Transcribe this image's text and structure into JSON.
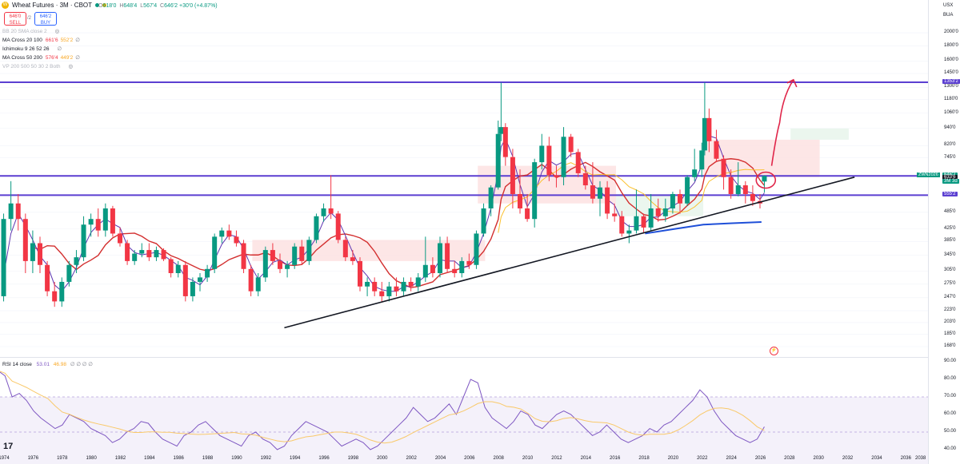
{
  "header": {
    "title": "Wheat Futures · 3M · CBOT",
    "sym_icon": "wheat-symbol-icon",
    "ohlc": {
      "o_label": "O",
      "o": "618'0",
      "h_label": "H",
      "h": "648'4",
      "l_label": "L",
      "l": "567'4",
      "c_label": "C",
      "c": "646'2",
      "chg": "+30'0 (+4.87%)"
    },
    "sell_price": "646'0",
    "sell_label": "SELL",
    "spread": "/2",
    "buy_price": "646'2",
    "buy_label": "BUY"
  },
  "indicators": [
    {
      "name": "BB 20 SMA close 2",
      "v1": "",
      "v2": "",
      "faded": true
    },
    {
      "name": "MA Cross 20 100",
      "v1": "661'6",
      "v2": "552'2"
    },
    {
      "name": "Ichimoku 9 26 52 26",
      "v1": "",
      "v2": ""
    },
    {
      "name": "MA Cross 50 200",
      "v1": "576'4",
      "v2": "449'2"
    },
    {
      "name": "VP 200 500 50 30 2 Both",
      "v1": "",
      "v2": "",
      "faded": true
    }
  ],
  "rsi_legend": {
    "name": "RSI 14 close",
    "v1": "53.01",
    "v2": "46.98",
    "rest": "∅ ∅ ∅ ∅"
  },
  "price_axis": {
    "currency": "USX",
    "unit": "BUA",
    "ticks": [
      {
        "v": 2000,
        "label": "2000'0"
      },
      {
        "v": 1800,
        "label": "1800'0"
      },
      {
        "v": 1600,
        "label": "1600'0"
      },
      {
        "v": 1450,
        "label": "1450'0"
      },
      {
        "v": 1300,
        "label": "1300'0"
      },
      {
        "v": 1180,
        "label": "1180'0"
      },
      {
        "v": 1060,
        "label": "1060'0"
      },
      {
        "v": 940,
        "label": "940'0"
      },
      {
        "v": 820,
        "label": "820'0"
      },
      {
        "v": 745,
        "label": "745'0"
      },
      {
        "v": 485,
        "label": "485'0"
      },
      {
        "v": 425,
        "label": "425'0"
      },
      {
        "v": 385,
        "label": "385'0"
      },
      {
        "v": 345,
        "label": "345'0"
      },
      {
        "v": 305,
        "label": "305'0"
      },
      {
        "v": 275,
        "label": "275'0"
      },
      {
        "v": 247,
        "label": "247'0"
      },
      {
        "v": 223,
        "label": "223'0"
      },
      {
        "v": 203,
        "label": "203'0"
      },
      {
        "v": 185,
        "label": "185'0"
      },
      {
        "v": 168,
        "label": "168'0"
      }
    ],
    "tags": [
      {
        "v": 1353.2,
        "label": "1353'2",
        "color": "#5b3fd1"
      },
      {
        "v": 646.2,
        "label": "646'2",
        "color": "#089981"
      },
      {
        "v": 633.6,
        "label": "633'6",
        "color": "#131722"
      },
      {
        "v": 555.2,
        "label": "555'2",
        "color": "#5b3fd1"
      }
    ],
    "contract_tag": "ZWN2026",
    "countdown": "3M 3d"
  },
  "rsi_axis": {
    "ticks": [
      "90.00",
      "80.00",
      "70.00",
      "60.00",
      "50.00",
      "40.00"
    ]
  },
  "time_axis": {
    "ticks": [
      "1974",
      "1976",
      "1978",
      "1980",
      "1982",
      "1984",
      "1986",
      "1988",
      "1990",
      "1992",
      "1994",
      "1996",
      "1998",
      "2000",
      "2002",
      "2004",
      "2006",
      "2008",
      "2010",
      "2012",
      "2014",
      "2016",
      "2018",
      "2020",
      "2022",
      "2024",
      "2026",
      "2028",
      "2030",
      "2032",
      "2034",
      "2036",
      "2038"
    ]
  },
  "chart_data": {
    "type": "candlestick",
    "symbol": "Wheat Futures",
    "interval": "3M",
    "exchange": "CBOT",
    "x_range": [
      "1972",
      "2038"
    ],
    "y_scale": "log",
    "candles": [
      {
        "t": 1972.9,
        "o": 160,
        "h": 180,
        "l": 150,
        "c": 175
      },
      {
        "t": 1973.4,
        "o": 175,
        "h": 260,
        "l": 170,
        "c": 250
      },
      {
        "t": 1973.9,
        "o": 250,
        "h": 480,
        "l": 240,
        "c": 460
      },
      {
        "t": 1974.4,
        "o": 460,
        "h": 620,
        "l": 420,
        "c": 520
      },
      {
        "t": 1974.9,
        "o": 520,
        "h": 560,
        "l": 420,
        "c": 460
      },
      {
        "t": 1975.4,
        "o": 460,
        "h": 480,
        "l": 300,
        "c": 330
      },
      {
        "t": 1975.9,
        "o": 330,
        "h": 420,
        "l": 300,
        "c": 380
      },
      {
        "t": 1976.4,
        "o": 380,
        "h": 400,
        "l": 300,
        "c": 320
      },
      {
        "t": 1976.9,
        "o": 320,
        "h": 330,
        "l": 250,
        "c": 260
      },
      {
        "t": 1977.4,
        "o": 260,
        "h": 280,
        "l": 230,
        "c": 240
      },
      {
        "t": 1977.9,
        "o": 240,
        "h": 290,
        "l": 230,
        "c": 280
      },
      {
        "t": 1978.4,
        "o": 280,
        "h": 330,
        "l": 270,
        "c": 320
      },
      {
        "t": 1978.9,
        "o": 320,
        "h": 360,
        "l": 300,
        "c": 340
      },
      {
        "t": 1979.4,
        "o": 340,
        "h": 470,
        "l": 330,
        "c": 440
      },
      {
        "t": 1979.9,
        "o": 440,
        "h": 480,
        "l": 400,
        "c": 460
      },
      {
        "t": 1980.4,
        "o": 460,
        "h": 500,
        "l": 400,
        "c": 420
      },
      {
        "t": 1980.9,
        "o": 420,
        "h": 520,
        "l": 400,
        "c": 500
      },
      {
        "t": 1981.4,
        "o": 500,
        "h": 510,
        "l": 400,
        "c": 410
      },
      {
        "t": 1981.9,
        "o": 410,
        "h": 430,
        "l": 370,
        "c": 380
      },
      {
        "t": 1982.4,
        "o": 380,
        "h": 390,
        "l": 320,
        "c": 330
      },
      {
        "t": 1982.9,
        "o": 330,
        "h": 360,
        "l": 320,
        "c": 350
      },
      {
        "t": 1983.4,
        "o": 350,
        "h": 380,
        "l": 340,
        "c": 360
      },
      {
        "t": 1983.9,
        "o": 360,
        "h": 380,
        "l": 330,
        "c": 340
      },
      {
        "t": 1984.4,
        "o": 340,
        "h": 370,
        "l": 330,
        "c": 360
      },
      {
        "t": 1984.9,
        "o": 360,
        "h": 365,
        "l": 330,
        "c": 335
      },
      {
        "t": 1985.4,
        "o": 335,
        "h": 340,
        "l": 290,
        "c": 300
      },
      {
        "t": 1985.9,
        "o": 300,
        "h": 330,
        "l": 290,
        "c": 320
      },
      {
        "t": 1986.4,
        "o": 320,
        "h": 330,
        "l": 240,
        "c": 250
      },
      {
        "t": 1986.9,
        "o": 250,
        "h": 290,
        "l": 240,
        "c": 280
      },
      {
        "t": 1987.4,
        "o": 280,
        "h": 300,
        "l": 260,
        "c": 290
      },
      {
        "t": 1987.9,
        "o": 290,
        "h": 320,
        "l": 280,
        "c": 310
      },
      {
        "t": 1988.4,
        "o": 310,
        "h": 410,
        "l": 300,
        "c": 400
      },
      {
        "t": 1988.9,
        "o": 400,
        "h": 430,
        "l": 380,
        "c": 420
      },
      {
        "t": 1989.4,
        "o": 420,
        "h": 440,
        "l": 390,
        "c": 400
      },
      {
        "t": 1989.9,
        "o": 400,
        "h": 420,
        "l": 370,
        "c": 380
      },
      {
        "t": 1990.4,
        "o": 380,
        "h": 390,
        "l": 300,
        "c": 310
      },
      {
        "t": 1990.9,
        "o": 310,
        "h": 320,
        "l": 250,
        "c": 260
      },
      {
        "t": 1991.4,
        "o": 260,
        "h": 300,
        "l": 250,
        "c": 290
      },
      {
        "t": 1991.9,
        "o": 290,
        "h": 370,
        "l": 280,
        "c": 360
      },
      {
        "t": 1992.4,
        "o": 360,
        "h": 380,
        "l": 320,
        "c": 330
      },
      {
        "t": 1992.9,
        "o": 330,
        "h": 350,
        "l": 300,
        "c": 310
      },
      {
        "t": 1993.4,
        "o": 310,
        "h": 330,
        "l": 290,
        "c": 320
      },
      {
        "t": 1993.9,
        "o": 320,
        "h": 380,
        "l": 310,
        "c": 370
      },
      {
        "t": 1994.4,
        "o": 370,
        "h": 390,
        "l": 320,
        "c": 330
      },
      {
        "t": 1994.9,
        "o": 330,
        "h": 400,
        "l": 320,
        "c": 390
      },
      {
        "t": 1995.4,
        "o": 390,
        "h": 480,
        "l": 380,
        "c": 470
      },
      {
        "t": 1995.9,
        "o": 470,
        "h": 520,
        "l": 450,
        "c": 500
      },
      {
        "t": 1996.4,
        "o": 500,
        "h": 650,
        "l": 460,
        "c": 480
      },
      {
        "t": 1996.9,
        "o": 480,
        "h": 490,
        "l": 380,
        "c": 390
      },
      {
        "t": 1997.4,
        "o": 390,
        "h": 400,
        "l": 330,
        "c": 340
      },
      {
        "t": 1997.9,
        "o": 340,
        "h": 360,
        "l": 320,
        "c": 330
      },
      {
        "t": 1998.4,
        "o": 330,
        "h": 340,
        "l": 260,
        "c": 270
      },
      {
        "t": 1998.9,
        "o": 270,
        "h": 290,
        "l": 250,
        "c": 280
      },
      {
        "t": 1999.4,
        "o": 280,
        "h": 290,
        "l": 250,
        "c": 260
      },
      {
        "t": 1999.9,
        "o": 260,
        "h": 280,
        "l": 240,
        "c": 250
      },
      {
        "t": 2000.4,
        "o": 250,
        "h": 280,
        "l": 240,
        "c": 270
      },
      {
        "t": 2000.9,
        "o": 270,
        "h": 290,
        "l": 250,
        "c": 260
      },
      {
        "t": 2001.4,
        "o": 260,
        "h": 290,
        "l": 250,
        "c": 280
      },
      {
        "t": 2001.9,
        "o": 280,
        "h": 290,
        "l": 260,
        "c": 270
      },
      {
        "t": 2002.4,
        "o": 270,
        "h": 300,
        "l": 260,
        "c": 290
      },
      {
        "t": 2002.9,
        "o": 290,
        "h": 400,
        "l": 280,
        "c": 320
      },
      {
        "t": 2003.4,
        "o": 320,
        "h": 340,
        "l": 290,
        "c": 300
      },
      {
        "t": 2003.9,
        "o": 300,
        "h": 400,
        "l": 290,
        "c": 380
      },
      {
        "t": 2004.4,
        "o": 380,
        "h": 400,
        "l": 300,
        "c": 310
      },
      {
        "t": 2004.9,
        "o": 310,
        "h": 330,
        "l": 290,
        "c": 300
      },
      {
        "t": 2005.4,
        "o": 300,
        "h": 340,
        "l": 290,
        "c": 330
      },
      {
        "t": 2005.9,
        "o": 330,
        "h": 350,
        "l": 310,
        "c": 320
      },
      {
        "t": 2006.4,
        "o": 320,
        "h": 420,
        "l": 310,
        "c": 410
      },
      {
        "t": 2006.9,
        "o": 410,
        "h": 520,
        "l": 400,
        "c": 500
      },
      {
        "t": 2007.4,
        "o": 500,
        "h": 600,
        "l": 470,
        "c": 590
      },
      {
        "t": 2007.9,
        "o": 590,
        "h": 1000,
        "l": 580,
        "c": 900
      },
      {
        "t": 2008.1,
        "o": 900,
        "h": 1350,
        "l": 850,
        "c": 950
      },
      {
        "t": 2008.4,
        "o": 950,
        "h": 980,
        "l": 700,
        "c": 750
      },
      {
        "t": 2008.9,
        "o": 750,
        "h": 800,
        "l": 500,
        "c": 560
      },
      {
        "t": 2009.4,
        "o": 560,
        "h": 680,
        "l": 480,
        "c": 500
      },
      {
        "t": 2009.9,
        "o": 500,
        "h": 560,
        "l": 450,
        "c": 460
      },
      {
        "t": 2010.4,
        "o": 460,
        "h": 740,
        "l": 430,
        "c": 720
      },
      {
        "t": 2010.9,
        "o": 720,
        "h": 900,
        "l": 680,
        "c": 820
      },
      {
        "t": 2011.4,
        "o": 820,
        "h": 880,
        "l": 620,
        "c": 650
      },
      {
        "t": 2011.9,
        "o": 650,
        "h": 700,
        "l": 590,
        "c": 640
      },
      {
        "t": 2012.4,
        "o": 640,
        "h": 950,
        "l": 600,
        "c": 880
      },
      {
        "t": 2012.9,
        "o": 880,
        "h": 900,
        "l": 750,
        "c": 780
      },
      {
        "t": 2013.4,
        "o": 780,
        "h": 800,
        "l": 640,
        "c": 660
      },
      {
        "t": 2013.9,
        "o": 660,
        "h": 700,
        "l": 580,
        "c": 600
      },
      {
        "t": 2014.4,
        "o": 600,
        "h": 720,
        "l": 520,
        "c": 540
      },
      {
        "t": 2014.9,
        "o": 540,
        "h": 620,
        "l": 470,
        "c": 590
      },
      {
        "t": 2015.4,
        "o": 590,
        "h": 620,
        "l": 460,
        "c": 480
      },
      {
        "t": 2015.9,
        "o": 480,
        "h": 520,
        "l": 450,
        "c": 470
      },
      {
        "t": 2016.4,
        "o": 470,
        "h": 490,
        "l": 400,
        "c": 410
      },
      {
        "t": 2016.9,
        "o": 410,
        "h": 440,
        "l": 380,
        "c": 420
      },
      {
        "t": 2017.4,
        "o": 420,
        "h": 580,
        "l": 410,
        "c": 470
      },
      {
        "t": 2017.9,
        "o": 470,
        "h": 480,
        "l": 410,
        "c": 430
      },
      {
        "t": 2018.4,
        "o": 430,
        "h": 560,
        "l": 420,
        "c": 500
      },
      {
        "t": 2018.9,
        "o": 500,
        "h": 540,
        "l": 450,
        "c": 470
      },
      {
        "t": 2019.4,
        "o": 470,
        "h": 540,
        "l": 450,
        "c": 500
      },
      {
        "t": 2019.9,
        "o": 500,
        "h": 570,
        "l": 480,
        "c": 560
      },
      {
        "t": 2020.4,
        "o": 560,
        "h": 580,
        "l": 480,
        "c": 520
      },
      {
        "t": 2020.9,
        "o": 520,
        "h": 650,
        "l": 510,
        "c": 640
      },
      {
        "t": 2021.4,
        "o": 640,
        "h": 800,
        "l": 620,
        "c": 680
      },
      {
        "t": 2021.9,
        "o": 680,
        "h": 840,
        "l": 640,
        "c": 790
      },
      {
        "t": 2022.1,
        "o": 790,
        "h": 1350,
        "l": 760,
        "c": 1020
      },
      {
        "t": 2022.4,
        "o": 1020,
        "h": 1100,
        "l": 780,
        "c": 850
      },
      {
        "t": 2022.9,
        "o": 850,
        "h": 930,
        "l": 720,
        "c": 740
      },
      {
        "t": 2023.4,
        "o": 740,
        "h": 760,
        "l": 580,
        "c": 640
      },
      {
        "t": 2023.9,
        "o": 640,
        "h": 680,
        "l": 540,
        "c": 560
      },
      {
        "t": 2024.4,
        "o": 560,
        "h": 720,
        "l": 550,
        "c": 600
      },
      {
        "t": 2024.9,
        "o": 600,
        "h": 620,
        "l": 520,
        "c": 560
      },
      {
        "t": 2025.4,
        "o": 560,
        "h": 600,
        "l": 510,
        "c": 530
      },
      {
        "t": 2025.9,
        "o": 530,
        "h": 560,
        "l": 500,
        "c": 520
      },
      {
        "t": 2026.2,
        "o": 618,
        "h": 648.5,
        "l": 567.5,
        "c": 646.25
      }
    ],
    "horizontal_levels": [
      1353.2,
      646.2,
      555.2
    ],
    "trendline": {
      "from": {
        "t": 1993.2,
        "v": 195
      },
      "to": {
        "t": 2032.4,
        "v": 640
      }
    },
    "projection_arrow": {
      "from": {
        "t": 2026.7,
        "v": 700
      },
      "to": {
        "t": 2028.2,
        "v": 1380
      }
    },
    "rsi": {
      "period": 14,
      "value": 53.01,
      "signal": 46.98,
      "band": [
        30,
        70
      ],
      "range": [
        30,
        90
      ],
      "values": [
        85,
        82,
        70,
        72,
        68,
        62,
        58,
        55,
        52,
        54,
        60,
        58,
        56,
        52,
        50,
        48,
        44,
        46,
        50,
        52,
        56,
        55,
        50,
        46,
        44,
        42,
        48,
        50,
        54,
        56,
        52,
        48,
        46,
        44,
        42,
        48,
        50,
        46,
        44,
        40,
        42,
        48,
        52,
        56,
        54,
        52,
        50,
        46,
        42,
        44,
        46,
        44,
        40,
        42,
        46,
        50,
        54,
        58,
        64,
        60,
        56,
        58,
        62,
        66,
        60,
        70,
        80,
        78,
        64,
        58,
        55,
        52,
        56,
        62,
        60,
        54,
        52,
        56,
        60,
        62,
        60,
        56,
        52,
        48,
        50,
        54,
        50,
        46,
        44,
        46,
        48,
        52,
        50,
        54,
        56,
        60,
        64,
        68,
        74,
        70,
        62,
        56,
        52,
        48,
        46,
        44,
        46,
        53
      ]
    }
  }
}
